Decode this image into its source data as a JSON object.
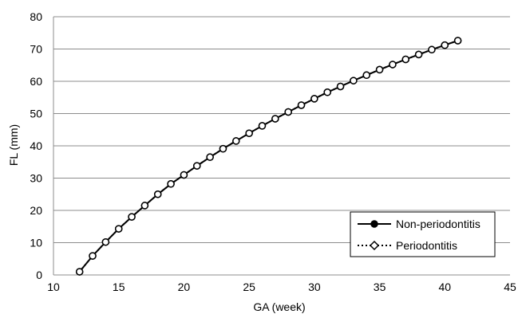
{
  "chart_data": {
    "type": "line",
    "xlabel": "GA (week)",
    "ylabel": "FL (mm)",
    "xlim": [
      10,
      45
    ],
    "ylim": [
      0,
      80
    ],
    "x_ticks": [
      10,
      15,
      20,
      25,
      30,
      35,
      40,
      45
    ],
    "y_ticks": [
      0,
      10,
      20,
      30,
      40,
      50,
      60,
      70,
      80
    ],
    "x_tick_labels": [
      "10",
      "15",
      "20",
      "25",
      "30",
      "35",
      "40",
      "45"
    ],
    "y_tick_labels": [
      "0",
      "10",
      "20",
      "30",
      "40",
      "50",
      "60",
      "70",
      "80"
    ],
    "grid": "horizontal",
    "legend_position": "bottom-right",
    "x": [
      12,
      13,
      14,
      15,
      16,
      17,
      18,
      19,
      20,
      21,
      22,
      23,
      24,
      25,
      26,
      27,
      28,
      29,
      30,
      31,
      32,
      33,
      34,
      35,
      36,
      37,
      38,
      39,
      40,
      41
    ],
    "series": [
      {
        "name": "Non-periodontitis",
        "marker": "filled-circle",
        "line": "solid",
        "values": [
          1.0,
          5.9,
          10.2,
          14.3,
          18.0,
          21.5,
          25.0,
          28.2,
          31.0,
          33.8,
          36.5,
          39.1,
          41.5,
          43.9,
          46.2,
          48.4,
          50.5,
          52.6,
          54.6,
          56.6,
          58.4,
          60.2,
          61.9,
          63.6,
          65.2,
          66.8,
          68.3,
          69.8,
          71.2,
          72.6
        ]
      },
      {
        "name": "Periodontitis",
        "marker": "open-diamond",
        "line": "dotted",
        "values": [
          1.0,
          5.9,
          10.2,
          14.3,
          18.0,
          21.5,
          25.0,
          28.2,
          31.0,
          33.8,
          36.5,
          39.1,
          41.5,
          43.9,
          46.2,
          48.4,
          50.5,
          52.6,
          54.6,
          56.6,
          58.4,
          60.2,
          61.9,
          63.6,
          65.2,
          66.8,
          68.3,
          69.8,
          71.2,
          72.6
        ]
      }
    ]
  }
}
